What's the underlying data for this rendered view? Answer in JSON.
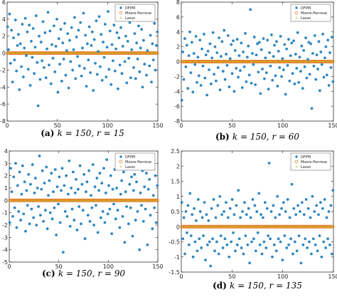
{
  "chart_data": [
    {
      "type": "scatter",
      "caption": {
        "letter": "(a)",
        "text": "k = 150,  r = 15"
      },
      "xlim": [
        0,
        150
      ],
      "ylim": [
        -8,
        6
      ],
      "xticks": [
        0,
        50,
        100,
        150
      ],
      "yticks": [
        -8,
        -6,
        -4,
        -2,
        0,
        2,
        4,
        6
      ],
      "legend": {
        "placement": "top-right",
        "entries": [
          "DFPM",
          "Moore-Penrose",
          "Lasso"
        ]
      },
      "series": [
        {
          "name": "DFPM",
          "marker": "filled-dot",
          "color": "#2e86c1",
          "values": [
            3.1,
            0.4,
            4.6,
            -1.2,
            2.7,
            -3.4,
            1.8,
            -0.8,
            3.9,
            -2.1,
            0.9,
            2.2,
            -4.3,
            1.1,
            -1.6,
            3.4,
            -2.8,
            0.6,
            4.1,
            -0.3,
            2.5,
            -1.9,
            3.3,
            -3.8,
            1.4,
            -0.5,
            2.9,
            -2.4,
            0.7,
            4.4,
            -1.1,
            -6.2,
            2.0,
            -3.1,
            1.3,
            -0.9,
            3.7,
            -1.7,
            2.4,
            -2.9,
            0.5,
            4.8,
            -1.4,
            2.6,
            -3.6,
            1.0,
            -0.6,
            3.2,
            -2.2,
            0.8,
            4.0,
            -4.6,
            1.7,
            -1.3,
            2.8,
            -3.3,
            1.2,
            -0.7,
            3.5,
            -2.6,
            0.3,
            2.3,
            -4.1,
            1.5,
            -1.0,
            3.0,
            -2.0,
            0.4,
            4.2,
            -3.0,
            1.9,
            -0.4,
            2.7,
            -1.5,
            3.6,
            -2.7,
            0.6,
            4.7,
            -1.8,
            2.1,
            -3.9,
            1.1,
            -0.8,
            3.1,
            -2.3,
            0.9,
            2.5,
            -4.4,
            1.6,
            -1.2,
            3.8,
            -2.5,
            0.2,
            4.3,
            -1.6,
            2.2,
            -3.2,
            1.3,
            -0.5,
            3.4,
            -2.8,
            0.7,
            4.9,
            -1.9,
            2.6,
            -3.7,
            1.0,
            -0.9,
            3.3,
            -2.1,
            0.5,
            2.4,
            -4.2,
            1.8,
            -1.4,
            3.0,
            -2.4,
            0.8,
            4.1,
            -1.0,
            2.0,
            -3.5,
            1.4,
            -0.6,
            3.6,
            -2.9,
            0.4,
            4.5,
            -1.7,
            2.3,
            -3.0,
            1.2,
            -0.7,
            3.2,
            -2.2,
            0.6,
            2.8,
            -4.0,
            1.5,
            -1.3,
            3.9,
            -2.6,
            0.3,
            4.4,
            -1.5,
            2.1,
            -3.4,
            1.1,
            -0.8,
            3.5,
            -2.0,
            0.9,
            2.5
          ]
        },
        {
          "name": "Moore-Penrose",
          "marker": "open-circle",
          "color": "#e07b2a",
          "values": [
            0.0
          ]
        },
        {
          "name": "Lasso",
          "marker": "star",
          "color": "#d4a017",
          "values": [
            0.0
          ]
        }
      ]
    },
    {
      "type": "scatter",
      "caption": {
        "letter": "(b)",
        "text": "k = 150,  r = 60"
      },
      "xlim": [
        0,
        150
      ],
      "ylim": [
        -8,
        8
      ],
      "xticks": [
        0,
        50,
        100,
        150
      ],
      "yticks": [
        -8,
        -6,
        -4,
        -2,
        0,
        2,
        4,
        6,
        8
      ],
      "legend": {
        "placement": "top-right",
        "entries": [
          "DFPM",
          "Moore-Penrose",
          "Lasso"
        ]
      },
      "series": [
        {
          "name": "DFPM",
          "marker": "filled-dot",
          "color": "#2e86c1",
          "values": [
            -5.2,
            1.3,
            -2.4,
            3.1,
            -0.7,
            2.2,
            -3.6,
            0.8,
            4.0,
            -1.5,
            2.6,
            -4.1,
            1.1,
            -0.4,
            3.4,
            -2.8,
            0.6,
            -1.9,
            2.9,
            -3.2,
            1.7,
            -0.6,
            3.7,
            -2.2,
            0.9,
            -4.5,
            1.4,
            -1.1,
            2.4,
            -3.0,
            0.5,
            3.9,
            -1.7,
            2.0,
            -2.6,
            1.2,
            -0.8,
            3.2,
            -3.8,
            0.7,
            2.7,
            -1.3,
            4.2,
            -2.4,
            1.0,
            -0.5,
            3.5,
            -3.4,
            0.4,
            2.3,
            -1.6,
            2.8,
            -4.0,
            1.5,
            -0.9,
            3.0,
            -2.1,
            0.8,
            -1.2,
            2.5,
            -3.5,
            1.3,
            -0.7,
            3.8,
            -2.7,
            0.6,
            2.1,
            -1.8,
            7.0,
            -2.9,
            1.1,
            -0.4,
            3.3,
            -3.1,
            0.9,
            2.4,
            -1.4,
            2.6,
            -4.3,
            1.6,
            -1.0,
            3.1,
            -2.3,
            0.5,
            -1.5,
            2.9,
            -3.7,
            1.2,
            -0.6,
            3.6,
            -2.5,
            0.7,
            2.2,
            -1.9,
            2.7,
            -3.3,
            1.4,
            -0.8,
            3.4,
            -2.0,
            0.4,
            -1.1,
            2.3,
            -4.4,
            1.7,
            -0.5,
            3.0,
            -2.6,
            0.8,
            2.5,
            -1.6,
            2.8,
            -3.0,
            1.0,
            -0.9,
            3.9,
            -2.8,
            0.6,
            -1.3,
            2.1,
            -3.6,
            1.5,
            -0.7,
            3.2,
            -2.2,
            0.3,
            2.6,
            -1.7,
            2.4,
            -6.3,
            1.1,
            -0.6,
            3.5,
            -2.4,
            0.9,
            -1.0,
            2.7,
            -3.9,
            1.3,
            -0.4,
            3.7,
            -2.1,
            0.5,
            2.0,
            -1.8,
            2.9,
            -3.2,
            1.2,
            -0.8,
            3.3,
            -2.7
          ]
        },
        {
          "name": "Moore-Penrose",
          "marker": "open-circle",
          "color": "#e07b2a",
          "values": [
            0.0
          ]
        },
        {
          "name": "Lasso",
          "marker": "star",
          "color": "#d4a017",
          "values": [
            0.0
          ]
        }
      ]
    },
    {
      "type": "scatter",
      "caption": {
        "letter": "(c)",
        "text": "k = 150,  r = 90"
      },
      "xlim": [
        0,
        150
      ],
      "ylim": [
        -5,
        4
      ],
      "xticks": [
        0,
        50,
        100,
        150
      ],
      "yticks": [
        -5,
        -4,
        -3,
        -2,
        -1,
        0,
        1,
        2,
        3,
        4
      ],
      "legend": {
        "placement": "top-right",
        "entries": [
          "DFPM",
          "Moore-Penrose",
          "Lasso"
        ]
      },
      "series": [
        {
          "name": "DFPM",
          "marker": "filled-dot",
          "color": "#2e86c1",
          "values": [
            -1.8,
            2.6,
            0.7,
            -1.3,
            1.9,
            -0.6,
            3.0,
            -2.2,
            1.2,
            -0.9,
            2.3,
            -1.6,
            0.5,
            2.8,
            -1.1,
            1.5,
            -2.5,
            0.8,
            -0.4,
            2.1,
            -1.9,
            1.3,
            -0.7,
            2.9,
            -1.4,
            0.6,
            1.8,
            -2.0,
            1.0,
            -0.5,
            3.6,
            -1.2,
            0.9,
            2.4,
            -1.7,
            1.4,
            -0.8,
            2.7,
            -2.3,
            0.4,
            1.6,
            -1.0,
            2.2,
            -1.5,
            0.7,
            -0.6,
            2.5,
            -2.8,
            1.1,
            -0.3,
            1.9,
            -1.8,
            0.8,
            2.6,
            -4.2,
            1.2,
            -0.9,
            2.0,
            -1.3,
            0.5,
            3.2,
            -2.1,
            1.0,
            -0.7,
            2.3,
            -1.6,
            0.6,
            1.7,
            -2.4,
            0.9,
            -0.5,
            2.8,
            -1.9,
            1.3,
            -0.8,
            2.1,
            -3.1,
            0.7,
            1.5,
            -1.2,
            2.4,
            -1.7,
            0.4,
            -0.6,
            2.9,
            -2.0,
            1.1,
            -0.4,
            1.8,
            -2.6,
            0.8,
            2.2,
            -1.4,
            1.4,
            -0.9,
            2.6,
            -1.8,
            0.6,
            3.3,
            -1.1,
            1.2,
            -0.7,
            2.0,
            -2.7,
            0.9,
            -0.3,
            2.5,
            -1.5,
            1.0,
            -0.8,
            3.5,
            -2.2,
            0.5,
            1.6,
            -1.3,
            2.3,
            -3.4,
            0.7,
            -0.5,
            2.7,
            -1.9,
            1.3,
            -0.6,
            1.9,
            -2.9,
            0.8,
            2.1,
            -1.6,
            1.5,
            -0.9,
            2.8,
            -4.0,
            0.6,
            -0.4,
            2.4,
            -1.7,
            1.1,
            -0.7,
            2.2,
            -3.6,
            0.9,
            1.7,
            -1.2,
            2.6,
            -2.3,
            0.4,
            -0.6,
            2.0,
            -1.8,
            1.2
          ]
        },
        {
          "name": "Moore-Penrose",
          "marker": "open-circle",
          "color": "#e07b2a",
          "values": [
            0.0
          ]
        },
        {
          "name": "Lasso",
          "marker": "star",
          "color": "#d4a017",
          "values": [
            0.0
          ]
        }
      ]
    },
    {
      "type": "scatter",
      "caption": {
        "letter": "(d)",
        "text": "k = 150,  r = 135"
      },
      "xlim": [
        0,
        150
      ],
      "ylim": [
        -1.5,
        2.5
      ],
      "xticks": [
        0,
        50,
        100,
        150
      ],
      "yticks": [
        -1.5,
        -1,
        -0.5,
        0,
        0.5,
        1,
        1.5,
        2,
        2.5
      ],
      "legend": {
        "placement": "top-right",
        "entries": [
          "DFPM",
          "Moore-Penrose",
          "Lasso"
        ]
      },
      "series": [
        {
          "name": "DFPM",
          "marker": "filled-dot",
          "color": "#2e86c1",
          "values": [
            0.8,
            -0.4,
            0.3,
            -0.9,
            0.5,
            -0.2,
            0.7,
            -0.6,
            1.1,
            -0.3,
            0.4,
            -1.0,
            0.6,
            -0.5,
            0.2,
            -0.8,
            0.9,
            -0.4,
            0.5,
            -0.7,
            0.3,
            -0.3,
            0.8,
            -1.1,
            0.4,
            -0.6,
            0.2,
            -0.5,
            -1.3,
            0.6,
            -0.4,
            0.9,
            -0.8,
            0.3,
            -0.5,
            0.7,
            -0.9,
            1.0,
            -0.3,
            0.4,
            -0.7,
            0.5,
            -0.4,
            0.8,
            -0.6,
            0.3,
            -1.0,
            0.6,
            -0.5,
            0.9,
            -0.2,
            0.4,
            -0.8,
            0.7,
            -0.6,
            1.2,
            -0.4,
            0.3,
            -0.7,
            0.5,
            -0.9,
            0.8,
            -0.3,
            0.4,
            -0.6,
            0.6,
            -1.2,
            0.3,
            -0.5,
            0.9,
            -0.4,
            0.7,
            -0.8,
            0.5,
            -0.2,
            1.1,
            -0.6,
            0.4,
            -0.9,
            0.3,
            -0.5,
            0.8,
            -0.7,
            0.6,
            -0.3,
            2.1,
            -0.4,
            0.5,
            -1.0,
            0.7,
            -0.6,
            0.3,
            -0.8,
            1.0,
            -0.4,
            0.4,
            -0.5,
            0.6,
            -1.1,
            0.8,
            -0.3,
            0.5,
            -0.7,
            0.9,
            -0.6,
            0.3,
            -0.4,
            1.4,
            -0.9,
            0.6,
            -0.5,
            0.4,
            -0.8,
            0.7,
            -0.3,
            0.5,
            -1.2,
            0.8,
            -0.6,
            0.4,
            -0.4,
            0.9,
            -0.7,
            0.6,
            -0.5,
            0.3,
            -0.9,
            1.0,
            -0.4,
            0.5,
            -0.6,
            0.7,
            -0.8,
            0.4,
            -0.3,
            0.8,
            -1.0,
            0.6,
            -0.5,
            0.9,
            -0.7,
            0.3,
            -0.4,
            0.5,
            -0.6,
            0.7,
            -0.9,
            1.2
          ]
        },
        {
          "name": "Moore-Penrose",
          "marker": "open-circle",
          "color": "#e07b2a",
          "values": [
            0.0
          ]
        },
        {
          "name": "Lasso",
          "marker": "star",
          "color": "#d4a017",
          "values": [
            0.0
          ]
        }
      ]
    }
  ]
}
